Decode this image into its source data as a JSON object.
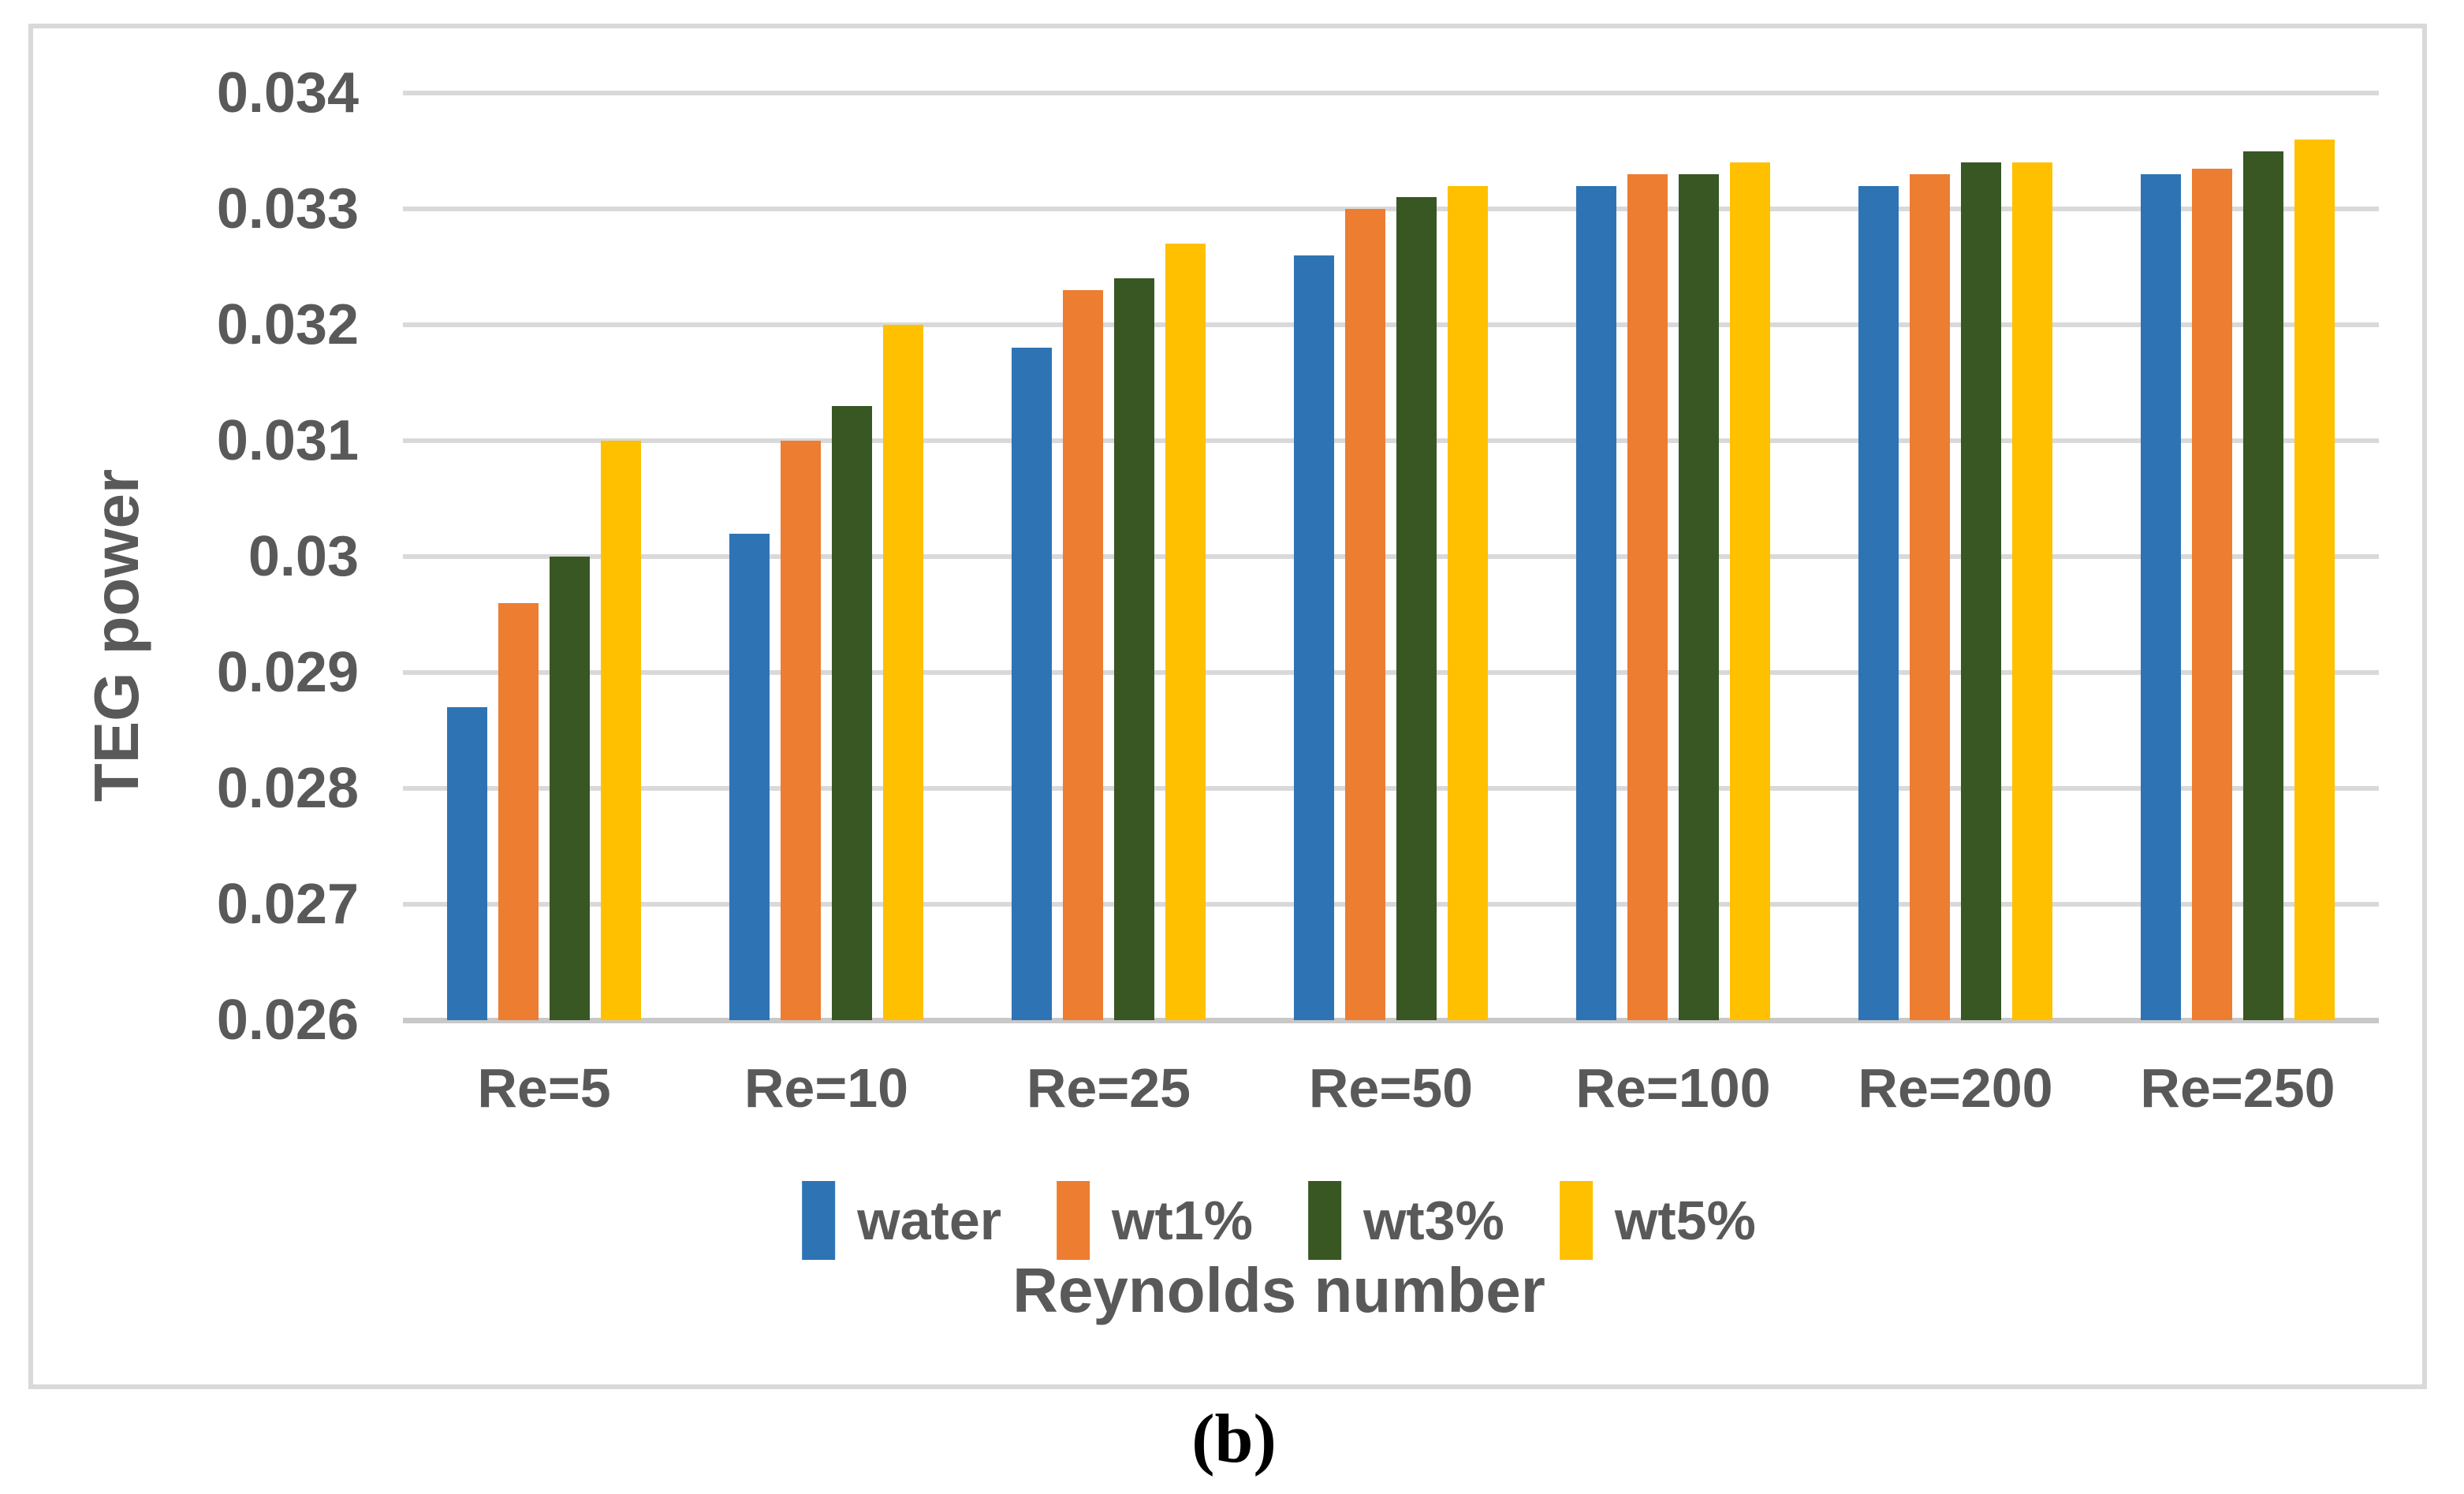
{
  "caption": "(b)",
  "colors": {
    "gridline": "#D9D9D9",
    "axis_line": "#C8C8C8",
    "frame_border": "#D9D9D9",
    "label_text": "#595959",
    "caption_text": "#000000"
  },
  "chart_data": {
    "type": "bar",
    "title": "",
    "xlabel": "Reynolds number",
    "ylabel": "TEG power",
    "categories": [
      "Re=5",
      "Re=10",
      "Re=25",
      "Re=50",
      "Re=100",
      "Re=200",
      "Re=250"
    ],
    "series": [
      {
        "name": "water",
        "color": "#2E74B5",
        "values": [
          0.0287,
          0.0302,
          0.0318,
          0.0326,
          0.0332,
          0.0332,
          0.0333
        ]
      },
      {
        "name": "wt1%",
        "color": "#ED7D31",
        "values": [
          0.0296,
          0.031,
          0.0323,
          0.033,
          0.0333,
          0.0333,
          0.03335
        ]
      },
      {
        "name": "wt3%",
        "color": "#385723",
        "values": [
          0.03,
          0.0313,
          0.0324,
          0.0331,
          0.0333,
          0.0334,
          0.0335
        ]
      },
      {
        "name": "wt5%",
        "color": "#FFC000",
        "values": [
          0.031,
          0.032,
          0.0327,
          0.0332,
          0.0334,
          0.0334,
          0.0336
        ]
      }
    ],
    "ylim": [
      0.026,
      0.034
    ],
    "y_tick_labels": [
      "0.034",
      "0.033",
      "0.032",
      "0.031",
      "0.03",
      "0.029",
      "0.028",
      "0.027",
      "0.026"
    ],
    "y_tick_values": [
      0.034,
      0.033,
      0.032,
      0.031,
      0.03,
      0.029,
      0.028,
      0.027,
      0.026
    ],
    "grid": "horizontal",
    "legend_position": "bottom"
  }
}
